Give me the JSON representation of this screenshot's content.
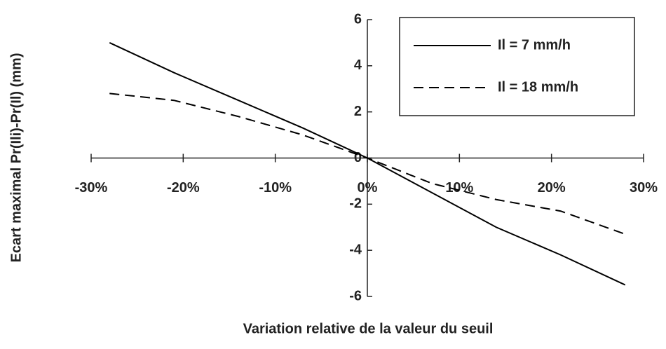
{
  "chart_data": {
    "type": "line",
    "x_label": "Variation relative de la valeur du seuil",
    "y_label": "Ecart maximal Pr(Ili)-Pr(Il) (mm)",
    "x": [
      -28,
      -21,
      -14,
      -7,
      0,
      7,
      14,
      21,
      28
    ],
    "series": [
      {
        "name": "Il = 7 mm/h",
        "color": "#000000",
        "dash": "solid",
        "values": [
          5,
          3.7,
          2.5,
          1.3,
          0,
          -1.5,
          -3.0,
          -4.2,
          -5.5
        ]
      },
      {
        "name": "Il = 18 mm/h",
        "color": "#000000",
        "dash": "dashed",
        "values": [
          2.8,
          2.5,
          1.8,
          1.0,
          0,
          -1.1,
          -1.8,
          -2.3,
          -3.3
        ]
      }
    ],
    "xlim": [
      -30,
      30
    ],
    "xticks": [
      {
        "value": -30,
        "label": "-30%"
      },
      {
        "value": -20,
        "label": "-20%"
      },
      {
        "value": -10,
        "label": "-10%"
      },
      {
        "value": 0,
        "label": "0%"
      },
      {
        "value": 10,
        "label": "10%"
      },
      {
        "value": 20,
        "label": "20%"
      },
      {
        "value": 30,
        "label": "30%"
      }
    ],
    "ylim": [
      -6,
      6
    ],
    "yticks": [
      6,
      4,
      2,
      0,
      -2,
      -4,
      -6
    ],
    "grid": false,
    "legend": "upper right"
  }
}
